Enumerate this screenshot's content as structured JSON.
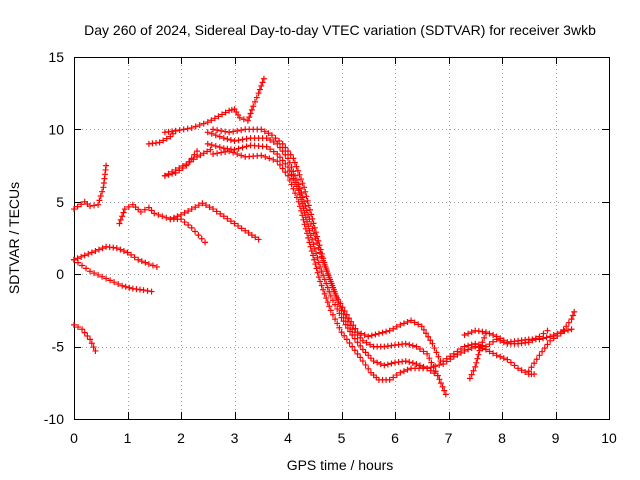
{
  "chart_data": {
    "type": "scatter",
    "title": "Day 260 of 2024, Sidereal Day-to-day VTEC variation (SDTVAR) for receiver 3wkb",
    "xlabel": "GPS time / hours",
    "ylabel": "SDTVAR / TECUs",
    "xlim": [
      0,
      10
    ],
    "ylim": [
      -10,
      15
    ],
    "x_ticks": [
      "0",
      "1",
      "2",
      "3",
      "4",
      "5",
      "6",
      "7",
      "8",
      "9",
      "10"
    ],
    "y_ticks": [
      "-10",
      "-5",
      "0",
      "5",
      "10",
      "15"
    ],
    "grid": true,
    "marker": "+",
    "marker_color": "#ff0000",
    "series": [
      {
        "x": [
          0.0,
          0.2,
          0.3,
          0.45,
          0.55,
          0.6
        ],
        "y": [
          4.5,
          5.0,
          4.7,
          4.8,
          6.0,
          7.5
        ]
      },
      {
        "x": [
          0.0,
          0.2,
          0.4,
          0.6,
          0.8,
          1.0,
          1.2,
          1.4,
          1.55
        ],
        "y": [
          1.0,
          1.3,
          1.6,
          1.9,
          1.8,
          1.5,
          1.0,
          0.7,
          0.5
        ]
      },
      {
        "x": [
          0.0,
          0.3,
          0.6,
          0.9,
          1.1,
          1.3,
          1.45
        ],
        "y": [
          1.0,
          0.2,
          -0.3,
          -0.8,
          -1.0,
          -1.1,
          -1.2
        ]
      },
      {
        "x": [
          0.0,
          0.15,
          0.3,
          0.4
        ],
        "y": [
          -3.5,
          -3.8,
          -4.5,
          -5.3
        ]
      },
      {
        "x": [
          0.85,
          0.95,
          1.1,
          1.25,
          1.4,
          1.5,
          1.65,
          1.8,
          2.0,
          2.2,
          2.45
        ],
        "y": [
          3.5,
          4.5,
          4.8,
          4.3,
          4.6,
          4.2,
          4.0,
          3.8,
          3.8,
          3.2,
          2.2
        ]
      },
      {
        "x": [
          1.8,
          2.0,
          2.2,
          2.4,
          2.6,
          2.8,
          3.0,
          3.2,
          3.45
        ],
        "y": [
          3.8,
          4.1,
          4.5,
          4.9,
          4.5,
          4.0,
          3.5,
          3.0,
          2.4
        ]
      },
      {
        "x": [
          1.7,
          1.9,
          2.1,
          2.3
        ],
        "y": [
          6.8,
          7.0,
          7.5,
          8.5
        ]
      },
      {
        "x": [
          1.7,
          1.9,
          2.1,
          2.3,
          2.55
        ],
        "y": [
          6.8,
          7.2,
          7.6,
          8.1,
          8.6
        ]
      },
      {
        "x": [
          1.4,
          1.6,
          1.8,
          1.9
        ],
        "y": [
          9.0,
          9.1,
          9.5,
          9.9
        ]
      },
      {
        "x": [
          1.7,
          1.9,
          2.2,
          2.5,
          2.7,
          2.9,
          3.0,
          3.1,
          3.25,
          3.35,
          3.45,
          3.55
        ],
        "y": [
          9.8,
          9.9,
          10.1,
          10.5,
          10.9,
          11.3,
          11.4,
          10.8,
          10.6,
          11.6,
          12.5,
          13.5
        ]
      },
      {
        "x": [
          2.6,
          2.9,
          3.2,
          3.5,
          3.7,
          3.9,
          4.1,
          4.3,
          4.5,
          4.7,
          4.9,
          5.1,
          5.3,
          5.5,
          5.7,
          5.9,
          6.1,
          6.3,
          6.5,
          6.7,
          6.85
        ],
        "y": [
          10.0,
          9.8,
          10.0,
          10.0,
          9.6,
          9.0,
          8.0,
          6.0,
          3.2,
          0.5,
          -1.5,
          -2.8,
          -4.0,
          -4.3,
          -4.1,
          -3.9,
          -3.5,
          -3.2,
          -3.6,
          -4.8,
          -6.0
        ]
      },
      {
        "x": [
          2.5,
          2.8,
          3.0,
          3.3,
          3.6,
          3.8,
          4.0,
          4.2,
          4.4,
          4.6,
          4.8,
          5.0,
          5.2,
          5.4,
          5.6,
          5.8,
          6.0,
          6.2,
          6.4,
          6.6,
          6.8,
          6.95
        ],
        "y": [
          9.8,
          9.4,
          9.2,
          9.4,
          9.4,
          9.0,
          8.0,
          6.2,
          3.8,
          1.5,
          -0.5,
          -2.5,
          -3.8,
          -4.6,
          -5.0,
          -5.0,
          -4.9,
          -4.8,
          -5.0,
          -5.5,
          -7.0,
          -8.3
        ]
      },
      {
        "x": [
          2.5,
          2.8,
          3.0,
          3.3,
          3.6,
          3.8,
          4.0,
          4.2,
          4.4,
          4.6,
          4.8,
          5.0,
          5.2,
          5.4,
          5.6,
          5.8,
          6.0,
          6.2,
          6.4,
          6.6,
          6.8
        ],
        "y": [
          9.0,
          8.7,
          8.6,
          8.9,
          8.8,
          8.3,
          7.4,
          5.8,
          3.0,
          0.5,
          -1.5,
          -3.0,
          -4.2,
          -5.2,
          -6.0,
          -6.3,
          -6.1,
          -6.0,
          -6.2,
          -6.5,
          -7.0
        ]
      },
      {
        "x": [
          2.6,
          2.9,
          3.2,
          3.5,
          3.8,
          4.0,
          4.2,
          4.4,
          4.6,
          4.8,
          5.0,
          5.2,
          5.4,
          5.55,
          5.7,
          5.9,
          6.1,
          6.3,
          6.6,
          6.9,
          7.1,
          7.3,
          7.5,
          7.7,
          7.9,
          8.1,
          8.3,
          8.5,
          8.6
        ],
        "y": [
          8.3,
          8.5,
          8.1,
          8.2,
          7.8,
          6.8,
          5.0,
          2.2,
          -0.5,
          -2.5,
          -4.0,
          -5.0,
          -6.0,
          -6.8,
          -7.3,
          -7.3,
          -6.8,
          -6.5,
          -6.5,
          -6.2,
          -5.7,
          -5.3,
          -5.0,
          -5.2,
          -5.6,
          -5.9,
          -6.5,
          -6.9,
          -6.9
        ]
      },
      {
        "x": [
          6.9,
          7.1,
          7.3,
          7.5,
          7.7,
          7.9,
          8.1,
          8.3,
          8.5,
          8.7,
          8.85
        ],
        "y": [
          -6.0,
          -5.5,
          -5.0,
          -4.8,
          -5.0,
          -4.5,
          -4.8,
          -4.8,
          -4.7,
          -4.3,
          -3.9
        ]
      },
      {
        "x": [
          7.3,
          7.5,
          7.7,
          7.9,
          8.1,
          8.3,
          8.5,
          8.7,
          8.9,
          9.1,
          9.3
        ],
        "y": [
          -4.2,
          -3.9,
          -4.0,
          -4.3,
          -4.7,
          -4.6,
          -4.5,
          -4.5,
          -4.3,
          -4.0,
          -3.8
        ]
      },
      {
        "x": [
          7.4,
          7.5,
          7.6,
          7.7
        ],
        "y": [
          -7.2,
          -6.4,
          -5.0,
          -4.1
        ]
      },
      {
        "x": [
          8.5,
          8.7,
          8.9,
          9.1,
          9.2,
          9.3,
          9.35
        ],
        "y": [
          -6.7,
          -5.6,
          -4.6,
          -4.1,
          -3.6,
          -3.1,
          -2.6
        ]
      }
    ]
  }
}
